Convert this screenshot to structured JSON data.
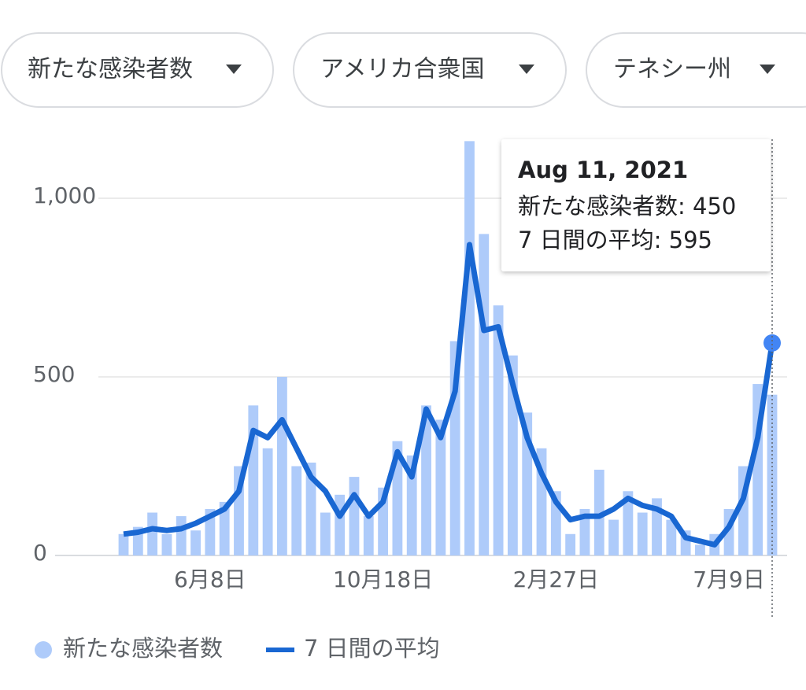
{
  "filters": [
    "新たな感染者数",
    "アメリカ合衆国",
    "テネシー州"
  ],
  "chart_data": {
    "type": "bar",
    "categories": [
      null,
      null,
      null,
      null,
      null,
      null,
      "6月8日",
      null,
      null,
      null,
      null,
      null,
      null,
      null,
      null,
      null,
      null,
      null,
      "10月18日",
      null,
      null,
      null,
      null,
      null,
      null,
      null,
      null,
      null,
      null,
      null,
      "2月27日",
      null,
      null,
      null,
      null,
      null,
      null,
      null,
      null,
      null,
      null,
      null,
      "7月9日",
      null,
      null,
      null
    ],
    "series": [
      {
        "name": "新たな感染者数",
        "color": "#aecbfa",
        "type": "bar",
        "values": [
          60,
          80,
          120,
          60,
          110,
          70,
          130,
          150,
          250,
          420,
          300,
          500,
          250,
          260,
          120,
          170,
          220,
          110,
          190,
          320,
          280,
          420,
          380,
          600,
          1160,
          900,
          700,
          560,
          400,
          300,
          180,
          60,
          130,
          240,
          100,
          180,
          120,
          160,
          100,
          70,
          30,
          60,
          130,
          250,
          480,
          450
        ]
      },
      {
        "name": "7 日間の平均",
        "color": "#1967d2",
        "type": "line",
        "values": [
          60,
          65,
          75,
          70,
          75,
          90,
          110,
          130,
          180,
          350,
          330,
          380,
          300,
          220,
          180,
          110,
          170,
          110,
          150,
          290,
          220,
          410,
          330,
          460,
          870,
          630,
          640,
          480,
          330,
          230,
          150,
          100,
          110,
          110,
          130,
          160,
          140,
          130,
          110,
          50,
          40,
          30,
          80,
          160,
          330,
          595
        ]
      }
    ],
    "ylim": [
      0,
      1160
    ],
    "yticks": [
      0,
      500,
      {
        "value": 1000,
        "label": "1,000"
      }
    ],
    "grid": true,
    "tooltip": {
      "title": "Aug 11, 2021",
      "lines": [
        "新たな感染者数: 450",
        "7 日間の平均: 595"
      ]
    }
  }
}
